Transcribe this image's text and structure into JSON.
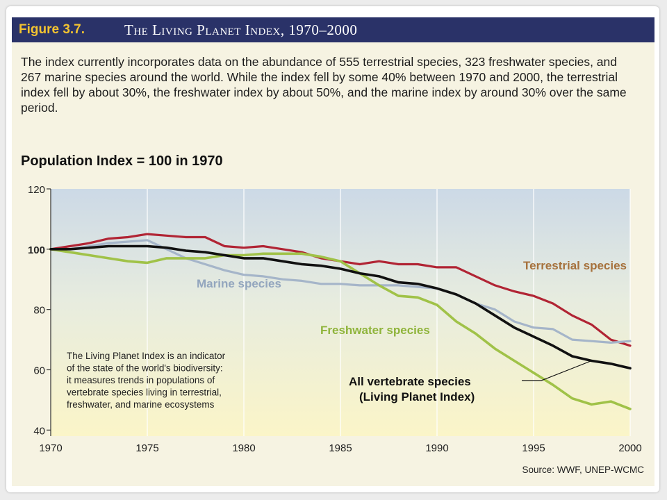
{
  "header": {
    "figure_label": "Figure 3.7.",
    "title": "The Living Planet Index, 1970–2000"
  },
  "description": "The index currently incorporates data on the abundance of 555 terrestrial species, 323 freshwater species, and 267 marine species around the world. While the index fell by some 40% between 1970 and 2000, the terrestrial index fell by about 30%, the freshwater index by about 50%, and the marine index by around 30% over the same period.",
  "source": "Source: WWF, UNEP-WCMC",
  "chart_data": {
    "type": "line",
    "title": "Population Index = 100 in 1970",
    "xlabel": "",
    "ylabel": "",
    "xlim": [
      1970,
      2000
    ],
    "ylim": [
      38,
      120
    ],
    "x_ticks": [
      1970,
      1975,
      1980,
      1985,
      1990,
      1995,
      2000
    ],
    "y_ticks": [
      40,
      60,
      80,
      100,
      120
    ],
    "grid": "vertical",
    "x": [
      1970,
      1971,
      1972,
      1973,
      1974,
      1975,
      1976,
      1977,
      1978,
      1979,
      1980,
      1981,
      1982,
      1983,
      1984,
      1985,
      1986,
      1987,
      1988,
      1989,
      1990,
      1991,
      1992,
      1993,
      1994,
      1995,
      1996,
      1997,
      1998,
      1999,
      2000
    ],
    "series": [
      {
        "name": "Terrestrial species",
        "color": "#b12434",
        "label_color": "#a6713c",
        "values": [
          100,
          101,
          102,
          103.5,
          104,
          105,
          104.5,
          104,
          104,
          101,
          100.5,
          101,
          100,
          99,
          97,
          96,
          95,
          96,
          95,
          95,
          94,
          94,
          91,
          88,
          86,
          84.5,
          82,
          78,
          75,
          70,
          68
        ]
      },
      {
        "name": "Marine species",
        "color": "#a5b5c9",
        "label_color": "#93a6be",
        "values": [
          100,
          100,
          101,
          102,
          102.5,
          103,
          100,
          97,
          95,
          93,
          91.5,
          91,
          90,
          89.5,
          88.5,
          88.5,
          88,
          88,
          88,
          87.5,
          87,
          85,
          82,
          80,
          76,
          74,
          73.5,
          70,
          69.5,
          69,
          69.5
        ]
      },
      {
        "name": "Freshwater species",
        "color": "#a0c248",
        "label_color": "#8fb43b",
        "values": [
          100,
          99,
          98,
          97,
          96,
          95.5,
          97,
          97,
          97,
          98,
          98,
          98.5,
          98.5,
          98.5,
          97.5,
          96,
          92,
          88,
          84.5,
          84,
          81.5,
          76,
          72,
          67,
          63,
          59,
          55,
          50.5,
          48.5,
          49.5,
          47
        ]
      },
      {
        "name": "All vertebrate species (Living Planet Index)",
        "color": "#111111",
        "label_color": "#111111",
        "values": [
          100,
          100,
          100.5,
          101,
          101,
          101,
          100.5,
          99.5,
          99,
          98,
          97,
          97,
          96,
          95,
          94.5,
          93.5,
          92,
          91,
          89,
          88.5,
          87,
          85,
          82,
          78,
          74,
          71,
          68,
          64.5,
          63,
          62,
          60.5
        ]
      }
    ],
    "inset_note": [
      "The Living Planet Index is an indicator",
      "of the state of the world's biodiversity:",
      "it measures trends in populations of",
      "vertebrate species living in terrestrial,",
      "freshwater, and marine ecosystems"
    ],
    "lpi_label_lines": [
      "All vertebrate species",
      "(Living Planet Index)"
    ]
  }
}
